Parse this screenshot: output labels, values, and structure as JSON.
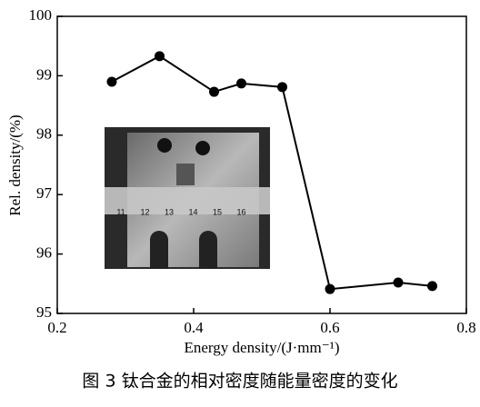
{
  "chart_data": {
    "type": "line",
    "x_label": "Energy density/(J·mm⁻¹)",
    "y_label": "Rel. density/(%)",
    "caption": "图 3   钛合金的相对密度随能量密度的变化",
    "inset_ruler_labels": [
      "11",
      "12",
      "13",
      "14",
      "15",
      "16"
    ],
    "series": [
      {
        "color": "#000000",
        "x": [
          0.28,
          0.35,
          0.43,
          0.47,
          0.53,
          0.6,
          0.7,
          0.75
        ],
        "values": [
          98.9,
          99.33,
          98.73,
          98.87,
          98.81,
          95.41,
          95.52,
          95.46
        ]
      }
    ],
    "xlim": [
      0.2,
      0.8
    ],
    "xticks": [
      0.2,
      0.4,
      0.6,
      0.8
    ],
    "ylim": [
      95,
      100
    ],
    "yticks": [
      95,
      96,
      97,
      98,
      99,
      100
    ]
  }
}
